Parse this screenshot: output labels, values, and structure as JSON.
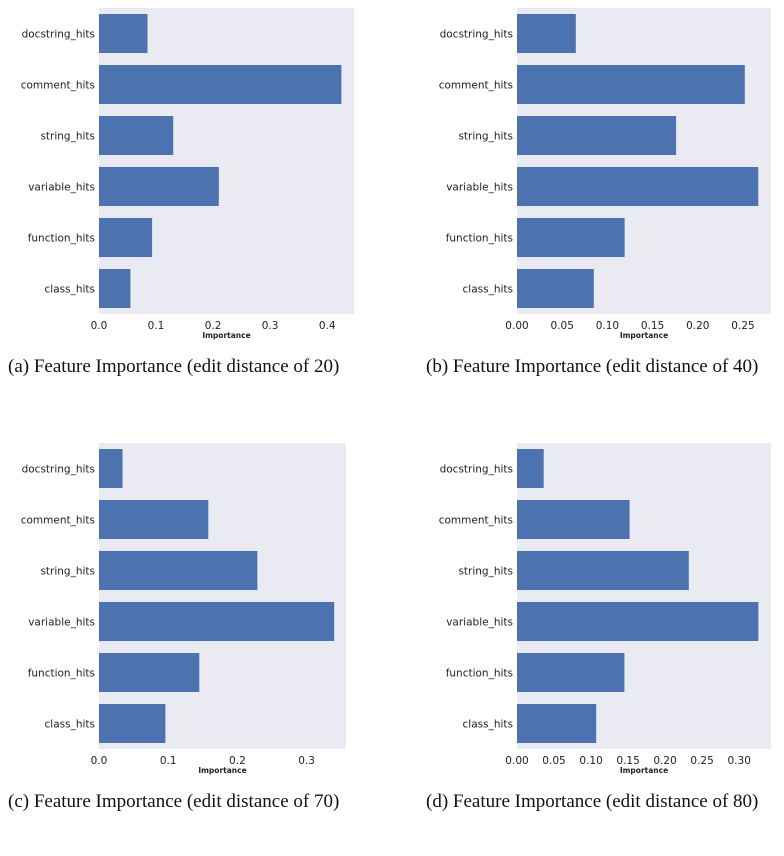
{
  "style": {
    "plot_bg": "#eaeaf2",
    "bar_color": "#4c72b0"
  },
  "chart_data": [
    {
      "type": "bar",
      "orientation": "horizontal",
      "caption": "(a) Feature Importance (edit distance of 20)",
      "xlabel": "Importance",
      "categories": [
        "docstring_hits",
        "comment_hits",
        "string_hits",
        "variable_hits",
        "function_hits",
        "class_hits"
      ],
      "values": [
        0.085,
        0.425,
        0.13,
        0.21,
        0.093,
        0.055
      ],
      "xlim": [
        0,
        0.447
      ],
      "xticks": [
        0.0,
        0.1,
        0.2,
        0.3,
        0.4
      ],
      "xtick_labels": [
        "0.0",
        "0.1",
        "0.2",
        "0.3",
        "0.4"
      ],
      "grid": false
    },
    {
      "type": "bar",
      "orientation": "horizontal",
      "caption": "(b) Feature Importance (edit distance of 40)",
      "xlabel": "Importance",
      "categories": [
        "docstring_hits",
        "comment_hits",
        "string_hits",
        "variable_hits",
        "function_hits",
        "class_hits"
      ],
      "values": [
        0.065,
        0.252,
        0.176,
        0.267,
        0.119,
        0.085
      ],
      "xlim": [
        0,
        0.281
      ],
      "xticks": [
        0.0,
        0.05,
        0.1,
        0.15,
        0.2,
        0.25
      ],
      "xtick_labels": [
        "0.00",
        "0.05",
        "0.10",
        "0.15",
        "0.20",
        "0.25"
      ],
      "grid": false
    },
    {
      "type": "bar",
      "orientation": "horizontal",
      "caption": "(c) Feature Importance (edit distance of 70)",
      "xlabel": "Importance",
      "categories": [
        "docstring_hits",
        "comment_hits",
        "string_hits",
        "variable_hits",
        "function_hits",
        "class_hits"
      ],
      "values": [
        0.034,
        0.158,
        0.229,
        0.34,
        0.145,
        0.096
      ],
      "xlim": [
        0,
        0.357
      ],
      "xticks": [
        0.0,
        0.1,
        0.2,
        0.3
      ],
      "xtick_labels": [
        "0.0",
        "0.1",
        "0.2",
        "0.3"
      ],
      "grid": false
    },
    {
      "type": "bar",
      "orientation": "horizontal",
      "caption": "(d) Feature Importance (edit distance of 80)",
      "xlabel": "Importance",
      "categories": [
        "docstring_hits",
        "comment_hits",
        "string_hits",
        "variable_hits",
        "function_hits",
        "class_hits"
      ],
      "values": [
        0.036,
        0.152,
        0.232,
        0.326,
        0.145,
        0.107
      ],
      "xlim": [
        0,
        0.343
      ],
      "xticks": [
        0.0,
        0.05,
        0.1,
        0.15,
        0.2,
        0.25,
        0.3
      ],
      "xtick_labels": [
        "0.00",
        "0.05",
        "0.10",
        "0.15",
        "0.20",
        "0.25",
        "0.30"
      ],
      "grid": false
    }
  ]
}
